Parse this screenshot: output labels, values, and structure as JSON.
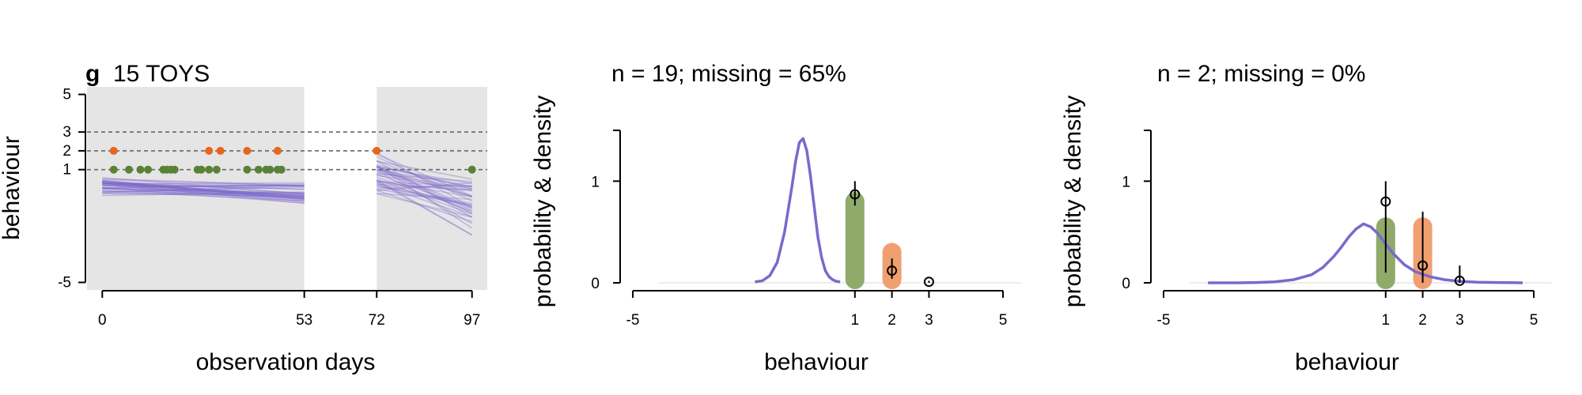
{
  "colors": {
    "line": "#7b68cc",
    "green": "#5a8236",
    "orange": "#e8651c",
    "green_bar": "#8faa6a",
    "orange_bar": "#f0a070",
    "shade": "#e5e5e5"
  },
  "chart_data": [
    {
      "type": "scatter",
      "panel_letter": "g",
      "title": "15 TOYS",
      "xlabel": "observation days",
      "ylabel": "behaviour",
      "xlim": [
        -4,
        101
      ],
      "ylim": [
        -5.4,
        5.4
      ],
      "xticks": [
        0,
        53,
        72,
        97
      ],
      "yticks": [
        -5,
        1,
        2,
        3,
        5
      ],
      "reference_lines": [
        1,
        2,
        3
      ],
      "observed_periods": [
        [
          -4,
          53
        ],
        [
          72,
          101
        ]
      ],
      "series": [
        {
          "values_x": [
            3,
            7,
            10,
            12,
            16,
            17,
            18,
            19,
            25,
            26,
            28,
            30,
            38,
            41,
            43,
            44,
            46,
            47,
            97
          ],
          "values_y": [
            1,
            1,
            1,
            1,
            1,
            1,
            1,
            1,
            1,
            1,
            1,
            1,
            1,
            1,
            1,
            1,
            1,
            1,
            1
          ]
        },
        {
          "values_x": [
            3,
            28,
            31,
            38,
            46,
            72
          ],
          "values_y": [
            2,
            2,
            2,
            2,
            2,
            2
          ]
        }
      ],
      "posterior_lines": {
        "segment1_x": [
          0,
          53
        ],
        "segment1_y_start": [
          -0.4,
          0.6
        ],
        "segment1_y_end": [
          -0.8,
          0.3
        ],
        "segment2_x": [
          72,
          97
        ],
        "segment2_y_start": [
          -0.3,
          1.9
        ],
        "segment2_y_end": [
          -2.5,
          0.5
        ]
      }
    },
    {
      "type": "line",
      "title": "n = 19; missing = 65%",
      "xlabel": "behaviour",
      "ylabel": "probability & density",
      "xlim": [
        -5,
        5
      ],
      "ylim": [
        0,
        1.5
      ],
      "xticks": [
        -5,
        1,
        2,
        3,
        5
      ],
      "yticks": [
        0,
        1
      ],
      "density": {
        "x": [
          -1.7,
          -1.5,
          -1.3,
          -1.1,
          -0.9,
          -0.7,
          -0.6,
          -0.5,
          -0.4,
          -0.3,
          -0.2,
          -0.1,
          0,
          0.1,
          0.2,
          0.3,
          0.4,
          0.5,
          0.6
        ],
        "y": [
          0.01,
          0.02,
          0.07,
          0.2,
          0.5,
          0.95,
          1.2,
          1.38,
          1.42,
          1.3,
          1.05,
          0.75,
          0.45,
          0.25,
          0.12,
          0.06,
          0.03,
          0.015,
          0.01
        ]
      },
      "bars": {
        "categories": [
          1,
          2
        ],
        "values": [
          0.8,
          0.3
        ]
      },
      "points": {
        "x": [
          1,
          2,
          3
        ],
        "y": [
          0.87,
          0.12,
          0.01
        ],
        "lower": [
          0.76,
          0.04,
          0.0
        ],
        "upper": [
          1.0,
          0.24,
          0.02
        ]
      }
    },
    {
      "type": "line",
      "title": "n = 2; missing = 0%",
      "xlabel": "behaviour",
      "ylabel": "probability & density",
      "xlim": [
        -5,
        5
      ],
      "ylim": [
        0,
        1.5
      ],
      "xticks": [
        -5,
        1,
        2,
        3,
        5
      ],
      "yticks": [
        0,
        1
      ],
      "density": {
        "x": [
          -3.8,
          -3.0,
          -2.5,
          -2.0,
          -1.5,
          -1.0,
          -0.7,
          -0.4,
          -0.2,
          0,
          0.2,
          0.4,
          0.6,
          0.8,
          1.0,
          1.2,
          1.5,
          1.8,
          2.2,
          2.6,
          3.0,
          3.5,
          4.0,
          4.5,
          4.7
        ],
        "y": [
          0.0,
          0.0,
          0.003,
          0.01,
          0.03,
          0.08,
          0.15,
          0.26,
          0.35,
          0.45,
          0.53,
          0.58,
          0.55,
          0.48,
          0.38,
          0.29,
          0.18,
          0.11,
          0.06,
          0.03,
          0.015,
          0.006,
          0.003,
          0.001,
          0.0
        ]
      },
      "bars": {
        "categories": [
          1,
          2
        ],
        "values": [
          0.55,
          0.55
        ]
      },
      "points": {
        "x": [
          1,
          2,
          3
        ],
        "y": [
          0.8,
          0.17,
          0.02
        ],
        "lower": [
          0.1,
          0.0,
          0.0
        ],
        "upper": [
          1.0,
          0.7,
          0.17
        ]
      }
    }
  ]
}
